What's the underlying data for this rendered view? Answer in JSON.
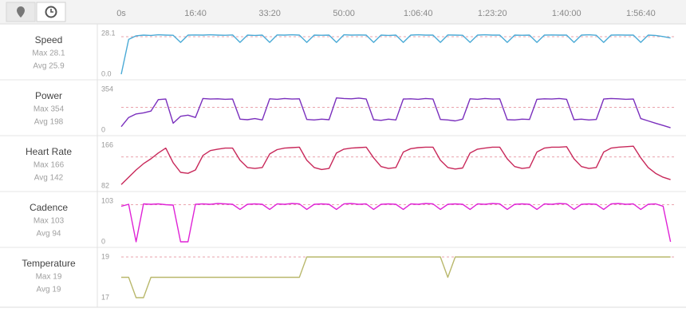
{
  "chart_data": [
    {
      "type": "line",
      "title": "Speed",
      "max_label": "Max 28.1",
      "avg": {
        "value": 25.9,
        "label": "Avg 25.9"
      },
      "color": "#4aaad6",
      "xlim": [
        0,
        7480
      ],
      "xticks": [
        {
          "value": 0,
          "label": "0s"
        },
        {
          "value": 1000,
          "label": "16:40"
        },
        {
          "value": 2000,
          "label": "33:20"
        },
        {
          "value": 3000,
          "label": "50:00"
        },
        {
          "value": 4000,
          "label": "1:06:40"
        },
        {
          "value": 5000,
          "label": "1:23:20"
        },
        {
          "value": 6000,
          "label": "1:40:00"
        },
        {
          "value": 7000,
          "label": "1:56:40"
        }
      ],
      "ylim": [
        0,
        28.1
      ],
      "yticks": [
        {
          "value": 0,
          "label": "0.0"
        },
        28.1
      ],
      "x": [
        0,
        100,
        200,
        300,
        400,
        500,
        600,
        700,
        800,
        900,
        1000,
        1100,
        1200,
        1300,
        1400,
        1500,
        1600,
        1700,
        1800,
        1900,
        2000,
        2100,
        2200,
        2300,
        2400,
        2500,
        2600,
        2700,
        2800,
        2900,
        3000,
        3100,
        3200,
        3300,
        3400,
        3500,
        3600,
        3700,
        3800,
        3900,
        4000,
        4100,
        4200,
        4300,
        4400,
        4500,
        4600,
        4700,
        4800,
        4900,
        5000,
        5100,
        5200,
        5300,
        5400,
        5500,
        5600,
        5700,
        5800,
        5900,
        6000,
        6100,
        6200,
        6300,
        6400,
        6500,
        6600,
        6700,
        6800,
        6900,
        7000,
        7100,
        7200,
        7300,
        7400
      ],
      "values": [
        0,
        24,
        26.5,
        27,
        26.8,
        27.2,
        27,
        26.9,
        22,
        27,
        27.1,
        27,
        27.2,
        27,
        26.9,
        27.1,
        22,
        27,
        26.8,
        27,
        22,
        27.1,
        27,
        27.2,
        27,
        22,
        27,
        26.9,
        27,
        22,
        27.2,
        27,
        27.1,
        27,
        22,
        27,
        26.8,
        27,
        22,
        27,
        27.2,
        27,
        27,
        22,
        27.1,
        27,
        26.9,
        22,
        27,
        27.2,
        27,
        27,
        22,
        27,
        26.9,
        27,
        22,
        27,
        27.1,
        27,
        27,
        22,
        27,
        27.2,
        26.9,
        22,
        27,
        27.1,
        27,
        27,
        22,
        27,
        26.8,
        26,
        25
      ]
    },
    {
      "type": "line",
      "title": "Power",
      "max_label": "Max 354",
      "avg": {
        "value": 198,
        "label": "Avg 198"
      },
      "color": "#7a2fbd",
      "xlim": [
        0,
        7480
      ],
      "ylim": [
        0,
        354
      ],
      "yticks": [
        0,
        354
      ],
      "x": [
        0,
        100,
        200,
        300,
        400,
        500,
        600,
        700,
        800,
        900,
        1000,
        1100,
        1200,
        1300,
        1400,
        1500,
        1600,
        1700,
        1800,
        1900,
        2000,
        2100,
        2200,
        2300,
        2400,
        2500,
        2600,
        2700,
        2800,
        2900,
        3000,
        3100,
        3200,
        3300,
        3400,
        3500,
        3600,
        3700,
        3800,
        3900,
        4000,
        4100,
        4200,
        4300,
        4400,
        4500,
        4600,
        4700,
        4800,
        4900,
        5000,
        5100,
        5200,
        5300,
        5400,
        5500,
        5600,
        5700,
        5800,
        5900,
        6000,
        6100,
        6200,
        6300,
        6400,
        6500,
        6600,
        6700,
        6800,
        6900,
        7000,
        7100,
        7200,
        7300,
        7400
      ],
      "values": [
        30,
        110,
        140,
        150,
        165,
        265,
        270,
        60,
        120,
        130,
        110,
        275,
        270,
        272,
        268,
        270,
        95,
        90,
        100,
        88,
        272,
        268,
        275,
        270,
        272,
        92,
        88,
        95,
        90,
        280,
        275,
        272,
        278,
        270,
        90,
        85,
        95,
        88,
        270,
        272,
        268,
        275,
        270,
        92,
        88,
        80,
        95,
        272,
        268,
        275,
        270,
        272,
        90,
        88,
        95,
        92,
        268,
        272,
        270,
        275,
        268,
        90,
        95,
        88,
        92,
        270,
        275,
        272,
        268,
        270,
        100,
        80,
        60,
        40,
        20
      ]
    },
    {
      "type": "line",
      "title": "Heart Rate",
      "max_label": "Max 166",
      "avg": {
        "value": 142,
        "label": "Avg 142"
      },
      "color": "#c8285a",
      "xlim": [
        0,
        7480
      ],
      "ylim": [
        82,
        166
      ],
      "yticks": [
        82,
        166
      ],
      "x": [
        0,
        100,
        200,
        300,
        400,
        500,
        600,
        700,
        800,
        900,
        1000,
        1100,
        1200,
        1300,
        1400,
        1500,
        1600,
        1700,
        1800,
        1900,
        2000,
        2100,
        2200,
        2300,
        2400,
        2500,
        2600,
        2700,
        2800,
        2900,
        3000,
        3100,
        3200,
        3300,
        3400,
        3500,
        3600,
        3700,
        3800,
        3900,
        4000,
        4100,
        4200,
        4300,
        4400,
        4500,
        4600,
        4700,
        4800,
        4900,
        5000,
        5100,
        5200,
        5300,
        5400,
        5500,
        5600,
        5700,
        5800,
        5900,
        6000,
        6100,
        6200,
        6300,
        6400,
        6500,
        6600,
        6700,
        6800,
        6900,
        7000,
        7100,
        7200,
        7300,
        7400
      ],
      "values": [
        85,
        100,
        115,
        128,
        138,
        150,
        160,
        130,
        110,
        108,
        115,
        145,
        155,
        158,
        160,
        160,
        135,
        120,
        118,
        120,
        148,
        157,
        160,
        161,
        162,
        135,
        120,
        116,
        118,
        150,
        158,
        160,
        161,
        162,
        140,
        122,
        118,
        120,
        152,
        159,
        161,
        162,
        162,
        135,
        120,
        117,
        119,
        150,
        158,
        160,
        162,
        162,
        138,
        122,
        118,
        120,
        152,
        160,
        162,
        162,
        163,
        138,
        122,
        118,
        120,
        152,
        160,
        162,
        163,
        164,
        140,
        120,
        108,
        100,
        95
      ]
    },
    {
      "type": "line",
      "title": "Cadence",
      "max_label": "Max 103",
      "avg": {
        "value": 94,
        "label": "Avg 94"
      },
      "color": "#df22d6",
      "xlim": [
        0,
        7480
      ],
      "ylim": [
        0,
        103
      ],
      "yticks": [
        0,
        103
      ],
      "x": [
        0,
        100,
        200,
        300,
        400,
        500,
        600,
        700,
        800,
        900,
        1000,
        1100,
        1200,
        1300,
        1400,
        1500,
        1600,
        1700,
        1800,
        1900,
        2000,
        2100,
        2200,
        2300,
        2400,
        2500,
        2600,
        2700,
        2800,
        2900,
        3000,
        3100,
        3200,
        3300,
        3400,
        3500,
        3600,
        3700,
        3800,
        3900,
        4000,
        4100,
        4200,
        4300,
        4400,
        4500,
        4600,
        4700,
        4800,
        4900,
        5000,
        5100,
        5200,
        5300,
        5400,
        5500,
        5600,
        5700,
        5800,
        5900,
        6000,
        6100,
        6200,
        6300,
        6400,
        6500,
        6600,
        6700,
        6800,
        6900,
        7000,
        7100,
        7200,
        7300,
        7400
      ],
      "values": [
        90,
        95,
        0,
        96,
        95,
        96,
        94,
        93,
        0,
        0,
        95,
        96,
        95,
        97,
        96,
        95,
        82,
        95,
        96,
        95,
        82,
        96,
        95,
        97,
        96,
        82,
        95,
        96,
        95,
        82,
        96,
        97,
        95,
        96,
        82,
        95,
        96,
        95,
        82,
        96,
        95,
        97,
        96,
        82,
        95,
        96,
        95,
        82,
        96,
        95,
        97,
        96,
        82,
        95,
        96,
        95,
        82,
        96,
        95,
        97,
        96,
        82,
        95,
        96,
        95,
        82,
        96,
        97,
        95,
        96,
        82,
        95,
        96,
        90,
        0
      ]
    },
    {
      "type": "line",
      "title": "Temperature",
      "max_label": "Max 19",
      "avg": {
        "value": 19,
        "label": "Avg 19"
      },
      "color": "#b9b86c",
      "xlim": [
        0,
        7480
      ],
      "ylim": [
        17,
        19
      ],
      "yticks": [
        17,
        19
      ],
      "x": [
        0,
        100,
        200,
        300,
        400,
        500,
        600,
        700,
        800,
        900,
        1000,
        1100,
        1200,
        1300,
        1400,
        1500,
        1600,
        1700,
        1800,
        1900,
        2000,
        2100,
        2200,
        2300,
        2400,
        2500,
        2600,
        2700,
        2800,
        2900,
        3000,
        3100,
        3200,
        3300,
        3400,
        3500,
        3600,
        3700,
        3800,
        3900,
        4000,
        4100,
        4200,
        4300,
        4400,
        4500,
        4600,
        4700,
        4800,
        4900,
        5000,
        5100,
        5200,
        5300,
        5400,
        5500,
        5600,
        5700,
        5800,
        5900,
        6000,
        6100,
        6200,
        6300,
        6400,
        6500,
        6600,
        6700,
        6800,
        6900,
        7000,
        7100,
        7200,
        7300,
        7400
      ],
      "values": [
        18,
        18,
        17,
        17,
        18,
        18,
        18,
        18,
        18,
        18,
        18,
        18,
        18,
        18,
        18,
        18,
        18,
        18,
        18,
        18,
        18,
        18,
        18,
        18,
        18,
        19,
        19,
        19,
        19,
        19,
        19,
        19,
        19,
        19,
        19,
        19,
        19,
        19,
        19,
        19,
        19,
        19,
        19,
        19,
        18,
        19,
        19,
        19,
        19,
        19,
        19,
        19,
        19,
        19,
        19,
        19,
        19,
        19,
        19,
        19,
        19,
        19,
        19,
        19,
        19,
        19,
        19,
        19,
        19,
        19,
        19,
        19,
        19,
        19,
        19
      ]
    }
  ]
}
